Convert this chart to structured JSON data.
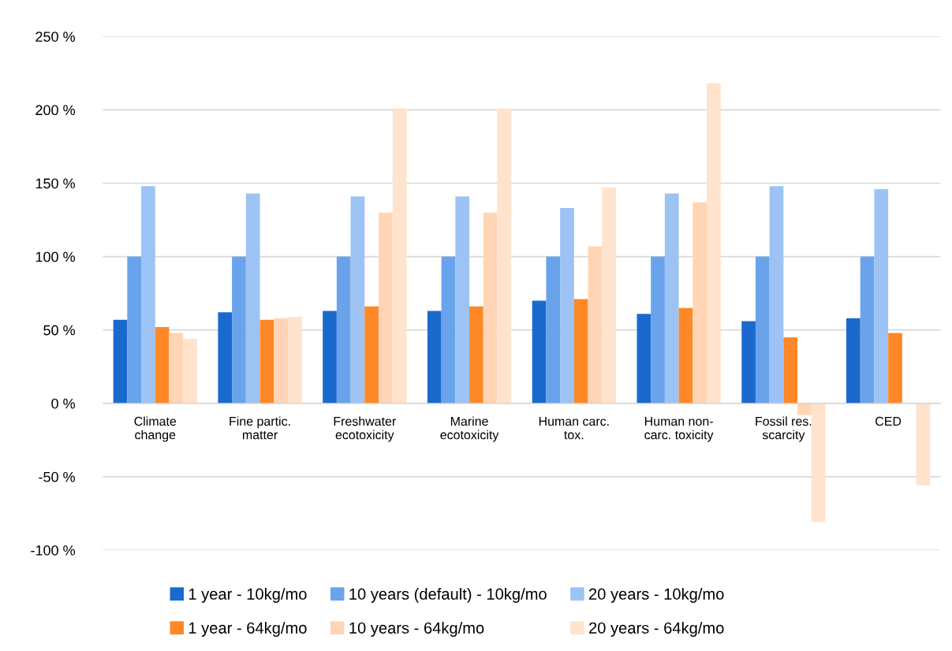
{
  "chart_data": {
    "type": "bar",
    "categories": [
      "Climate\nchange",
      "Fine partic.\nmatter",
      "Freshwater\necotoxicity",
      "Marine\necotoxicity",
      "Human carc.\ntox.",
      "Human non-\ncarc. toxicity",
      "Fossil res.\nscarcity",
      "CED"
    ],
    "series": [
      {
        "name": "1 year - 10kg/mo",
        "color": "#1a6ace",
        "values": [
          57,
          62,
          63,
          63,
          70,
          61,
          56,
          58
        ]
      },
      {
        "name": "10 years (default) - 10kg/mo",
        "color": "#69a3ec",
        "values": [
          100,
          100,
          100,
          100,
          100,
          100,
          100,
          100
        ]
      },
      {
        "name": "20 years - 10kg/mo",
        "color": "#9cc3f4",
        "values": [
          148,
          143,
          141,
          141,
          133,
          143,
          148,
          146
        ]
      },
      {
        "name": "1 year - 64kg/mo",
        "color": "#fe8827",
        "values": [
          52,
          57,
          66,
          66,
          71,
          65,
          45,
          48
        ]
      },
      {
        "name": "10 years - 64kg/mo",
        "color": "#ffd5b5",
        "values": [
          48,
          58,
          130,
          130,
          107,
          137,
          -8,
          null
        ]
      },
      {
        "name": "20 years - 64kg/mo",
        "color": "#ffe3cc",
        "values": [
          44,
          59,
          201,
          201,
          147,
          218,
          -81,
          -56
        ]
      }
    ],
    "ylim": [
      -100,
      250
    ],
    "yticks": [
      {
        "value": -100,
        "label": "-100 %"
      },
      {
        "value": -50,
        "label": "-50 %"
      },
      {
        "value": 0,
        "label": "0 %"
      },
      {
        "value": 50,
        "label": "50 %"
      },
      {
        "value": 100,
        "label": "100 %"
      },
      {
        "value": 150,
        "label": "150 %"
      },
      {
        "value": 200,
        "label": "200 %"
      },
      {
        "value": 250,
        "label": "250 %"
      }
    ],
    "grid": "y",
    "legend": "bottom"
  }
}
